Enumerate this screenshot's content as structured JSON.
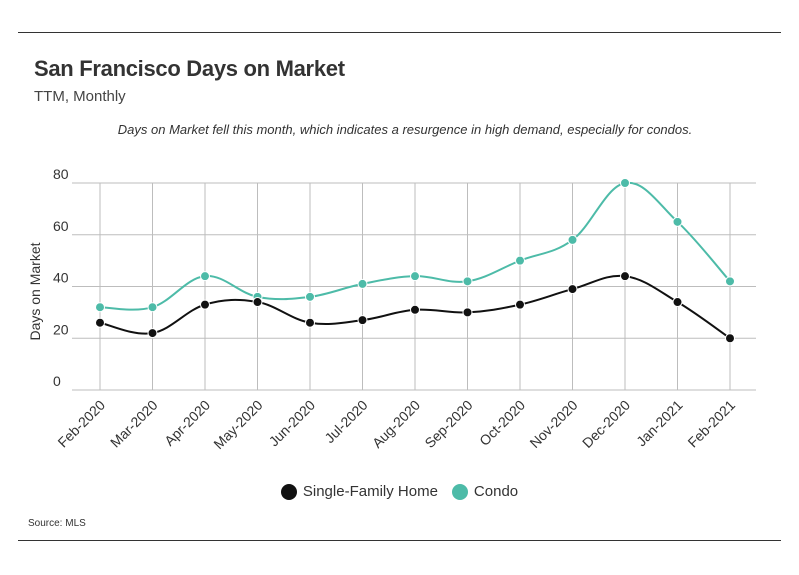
{
  "header": {
    "title": "San Francisco Days on Market",
    "subtitle": "TTM, Monthly",
    "annotation": "Days on Market fell this month, which indicates a resurgence in high demand, especially for condos."
  },
  "footer": {
    "source": "Source:  MLS"
  },
  "chart_data": {
    "type": "line",
    "title": "San Francisco Days on Market",
    "subtitle": "TTM, Monthly",
    "ylabel": "Days on Market",
    "xlabel": "",
    "ylim": [
      0,
      80
    ],
    "yticks": [
      0,
      20,
      40,
      60,
      80
    ],
    "grid": true,
    "legend_position": "bottom",
    "categories": [
      "Feb-2020",
      "Mar-2020",
      "Apr-2020",
      "May-2020",
      "Jun-2020",
      "Jul-2020",
      "Aug-2020",
      "Sep-2020",
      "Oct-2020",
      "Nov-2020",
      "Dec-2020",
      "Jan-2021",
      "Feb-2021"
    ],
    "series": [
      {
        "name": "Single-Family Home",
        "color": "#111111",
        "values": [
          26,
          22,
          33,
          34,
          26,
          27,
          31,
          30,
          33,
          39,
          44,
          34,
          20
        ]
      },
      {
        "name": "Condo",
        "color": "#4dbba8",
        "values": [
          32,
          32,
          44,
          36,
          36,
          41,
          44,
          42,
          50,
          58,
          80,
          65,
          42
        ]
      }
    ]
  }
}
